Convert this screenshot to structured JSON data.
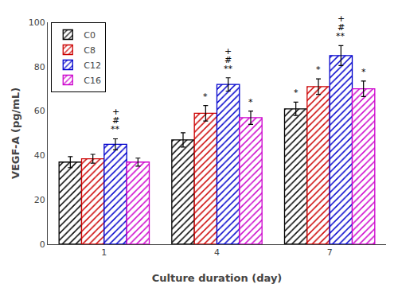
{
  "chart_data": {
    "type": "bar",
    "xlabel": "Culture duration (day)",
    "ylabel": "VEGF-A (pg/mL)",
    "categories": [
      "1",
      "4",
      "7"
    ],
    "series": [
      {
        "name": "C0",
        "color": "black",
        "values": [
          37.0,
          47.0,
          61.0
        ],
        "errors": [
          2.5,
          3.2,
          3.0
        ]
      },
      {
        "name": "C8",
        "color": "#cc0000",
        "values": [
          38.5,
          59.0,
          71.0
        ],
        "errors": [
          2.0,
          3.5,
          3.5
        ]
      },
      {
        "name": "C12",
        "color": "#0000cc",
        "values": [
          45.0,
          72.0,
          85.0
        ],
        "errors": [
          2.5,
          3.0,
          4.5
        ]
      },
      {
        "name": "C16",
        "color": "#cc00cc",
        "values": [
          37.0,
          57.0,
          70.0
        ],
        "errors": [
          1.8,
          3.0,
          3.5
        ]
      }
    ],
    "annotations": [
      {
        "category": "1",
        "series": "C12",
        "texts": [
          "**",
          "#",
          "+"
        ]
      },
      {
        "category": "4",
        "series": "C8",
        "texts": [
          "*"
        ]
      },
      {
        "category": "4",
        "series": "C12",
        "texts": [
          "**",
          "#",
          "+"
        ]
      },
      {
        "category": "4",
        "series": "C16",
        "texts": [
          "*"
        ]
      },
      {
        "category": "7",
        "series": "C0",
        "texts": [
          "*"
        ]
      },
      {
        "category": "7",
        "series": "C8",
        "texts": [
          "*"
        ]
      },
      {
        "category": "7",
        "series": "C12",
        "texts": [
          "**",
          "#",
          "+"
        ]
      },
      {
        "category": "7",
        "series": "C16",
        "texts": [
          "*"
        ]
      }
    ],
    "ylim": [
      0,
      100
    ],
    "yticks": [
      0,
      20,
      40,
      60,
      80,
      100
    ],
    "grid": false,
    "legend": "upper left"
  }
}
